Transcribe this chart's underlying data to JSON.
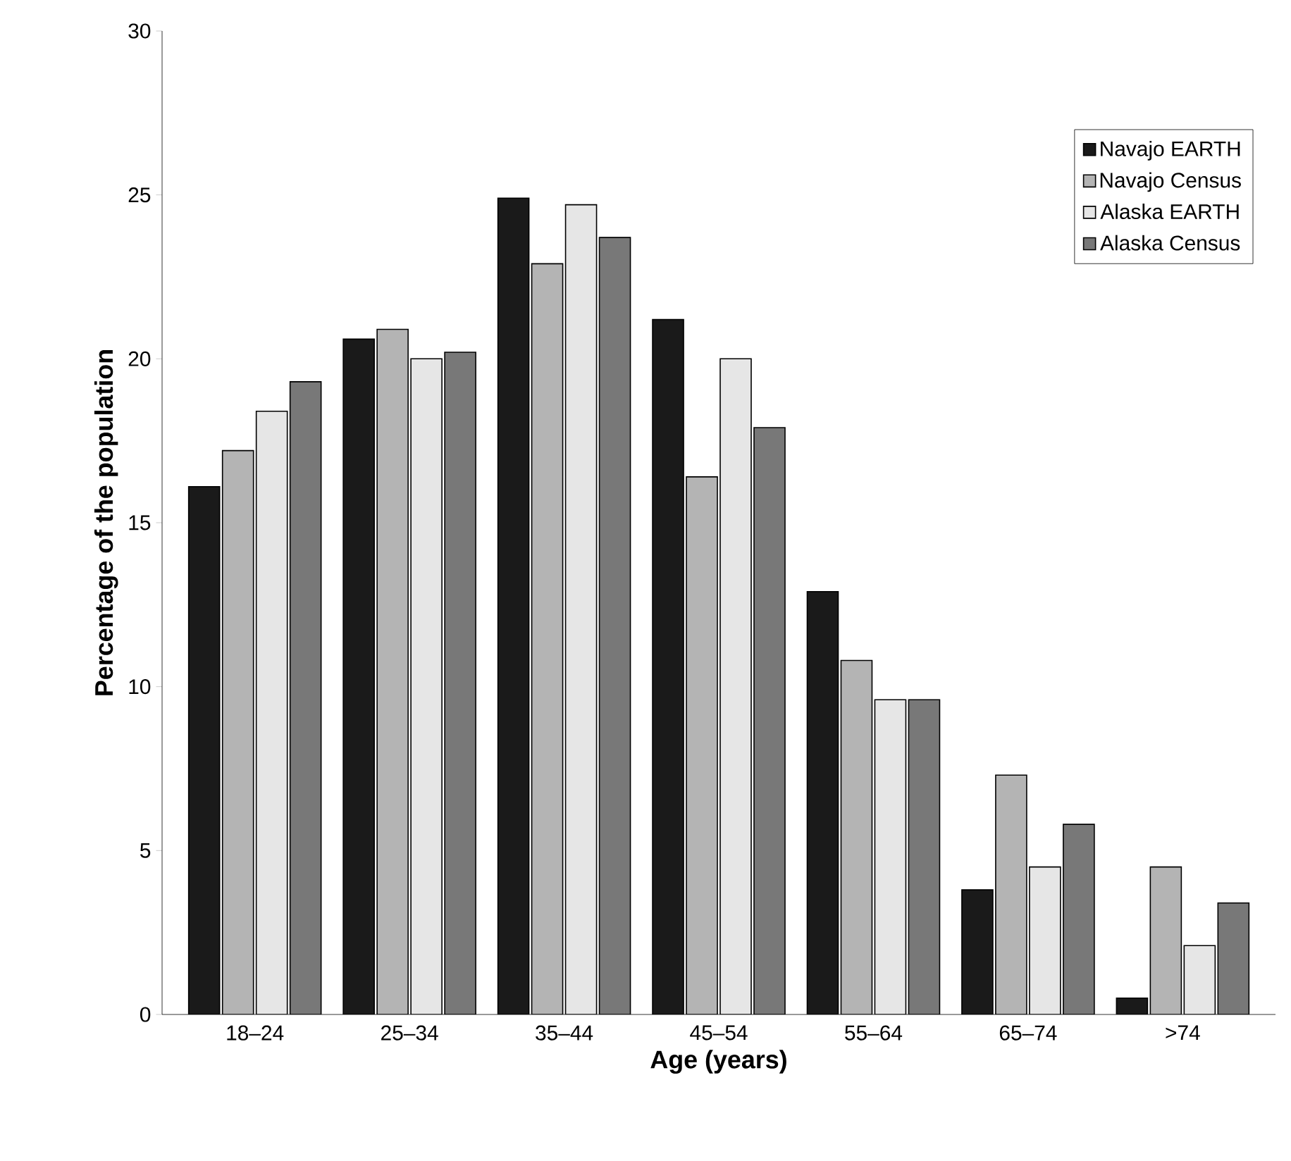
{
  "chart_data": {
    "type": "bar",
    "xlabel": "Age (years)",
    "ylabel": "Percentage of the population",
    "categories": [
      "18–24",
      "25–34",
      "35–44",
      "45–54",
      "55–64",
      "65–74",
      ">74"
    ],
    "series": [
      {
        "name": "Navajo EARTH",
        "color": "#1a1a1a",
        "values": [
          16.1,
          20.6,
          24.9,
          21.2,
          12.9,
          3.8,
          0.5
        ]
      },
      {
        "name": "Navajo Census",
        "color": "#b4b4b4",
        "values": [
          17.2,
          20.9,
          22.9,
          16.4,
          10.8,
          7.3,
          4.5
        ]
      },
      {
        "name": "Alaska EARTH",
        "color": "#e6e6e6",
        "values": [
          18.4,
          20.0,
          24.7,
          20.0,
          9.6,
          4.5,
          2.1
        ]
      },
      {
        "name": "Alaska Census",
        "color": "#787878",
        "values": [
          19.3,
          20.2,
          23.7,
          17.9,
          9.6,
          5.8,
          3.4
        ]
      }
    ],
    "ylim": [
      0,
      30
    ],
    "yticks": [
      0,
      5,
      10,
      15,
      20,
      25,
      30
    ],
    "grid": false,
    "legend": "top right"
  }
}
